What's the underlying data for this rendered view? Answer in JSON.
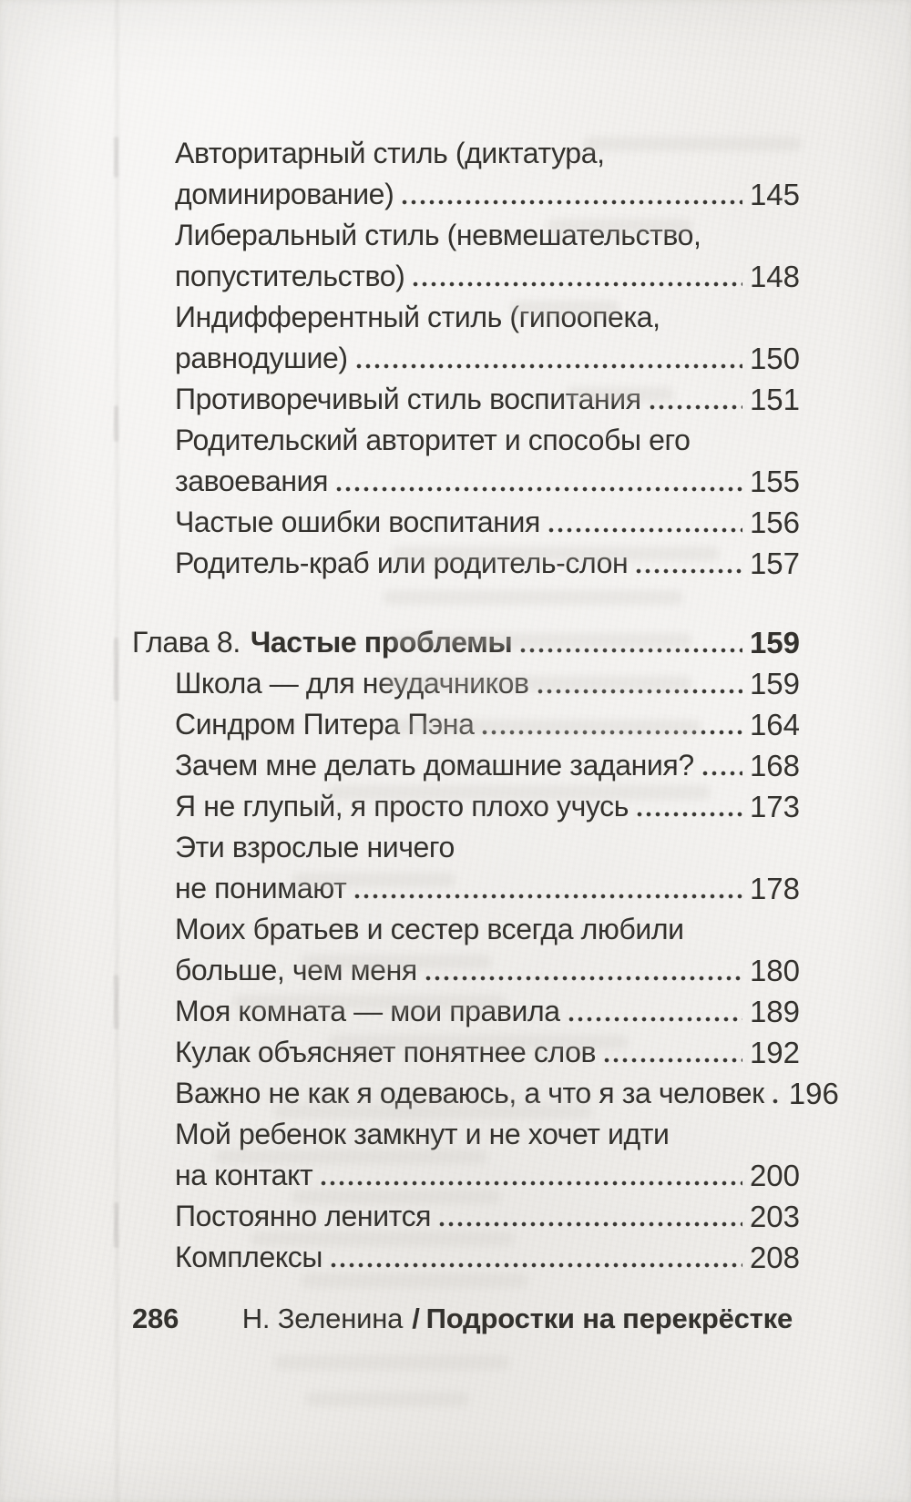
{
  "page": {
    "paper_color": "#f0eeeb",
    "text_color": "#33312d"
  },
  "toc": {
    "entries": [
      {
        "kind": "entry",
        "lines": [
          "Авторитарный стиль (диктатура,",
          "доминирование)"
        ],
        "page": "145"
      },
      {
        "kind": "entry",
        "lines": [
          "Либеральный стиль (невмешательство,",
          "попустительство)"
        ],
        "page": "148"
      },
      {
        "kind": "entry",
        "lines": [
          "Индифферентный стиль (гипоопека,",
          "равнодушие)"
        ],
        "page": "150"
      },
      {
        "kind": "entry",
        "lines": [
          "Противоречивый стиль воспитания"
        ],
        "page": "151"
      },
      {
        "kind": "entry",
        "lines": [
          "Родительский авторитет и способы его",
          "завоевания"
        ],
        "page": "155"
      },
      {
        "kind": "entry",
        "lines": [
          "Частые ошибки воспитания"
        ],
        "page": "156"
      },
      {
        "kind": "entry",
        "lines": [
          "Родитель-краб или родитель-слон"
        ],
        "page": "157"
      },
      {
        "kind": "chapter",
        "space_before": true,
        "prefix": "Глава 8.",
        "title": "Частые проблемы",
        "page": "159"
      },
      {
        "kind": "entry",
        "lines": [
          "Школа — для неудачников"
        ],
        "page": "159"
      },
      {
        "kind": "entry",
        "lines": [
          "Синдром Питера Пэна"
        ],
        "page": "164"
      },
      {
        "kind": "entry",
        "lines": [
          "Зачем мне делать домашние задания?"
        ],
        "page": "168"
      },
      {
        "kind": "entry",
        "lines": [
          "Я не глупый, я просто плохо учусь"
        ],
        "page": "173"
      },
      {
        "kind": "entry",
        "lines": [
          "Эти взрослые ничего",
          "не понимают"
        ],
        "page": "178"
      },
      {
        "kind": "entry",
        "lines": [
          "Моих братьев и сестер всегда любили",
          "больше, чем меня"
        ],
        "page": "180"
      },
      {
        "kind": "entry",
        "lines": [
          "Моя комната — мои правила"
        ],
        "page": "189"
      },
      {
        "kind": "entry",
        "lines": [
          "Кулак объясняет понятнее слов"
        ],
        "page": "192"
      },
      {
        "kind": "entry",
        "lines": [
          "Важно не как я одеваюсь, а что я за человек"
        ],
        "page": "196"
      },
      {
        "kind": "entry",
        "lines": [
          "Мой ребенок замкнут и не хочет идти",
          "на контакт"
        ],
        "page": "200"
      },
      {
        "kind": "entry",
        "lines": [
          "Постоянно ленится"
        ],
        "page": "203"
      },
      {
        "kind": "entry",
        "lines": [
          "Комплексы"
        ],
        "page": "208"
      }
    ]
  },
  "footer": {
    "page_number": "286",
    "author": "Н. Зеленина",
    "separator": "/",
    "book_title": "Подростки на перекрёстке"
  }
}
